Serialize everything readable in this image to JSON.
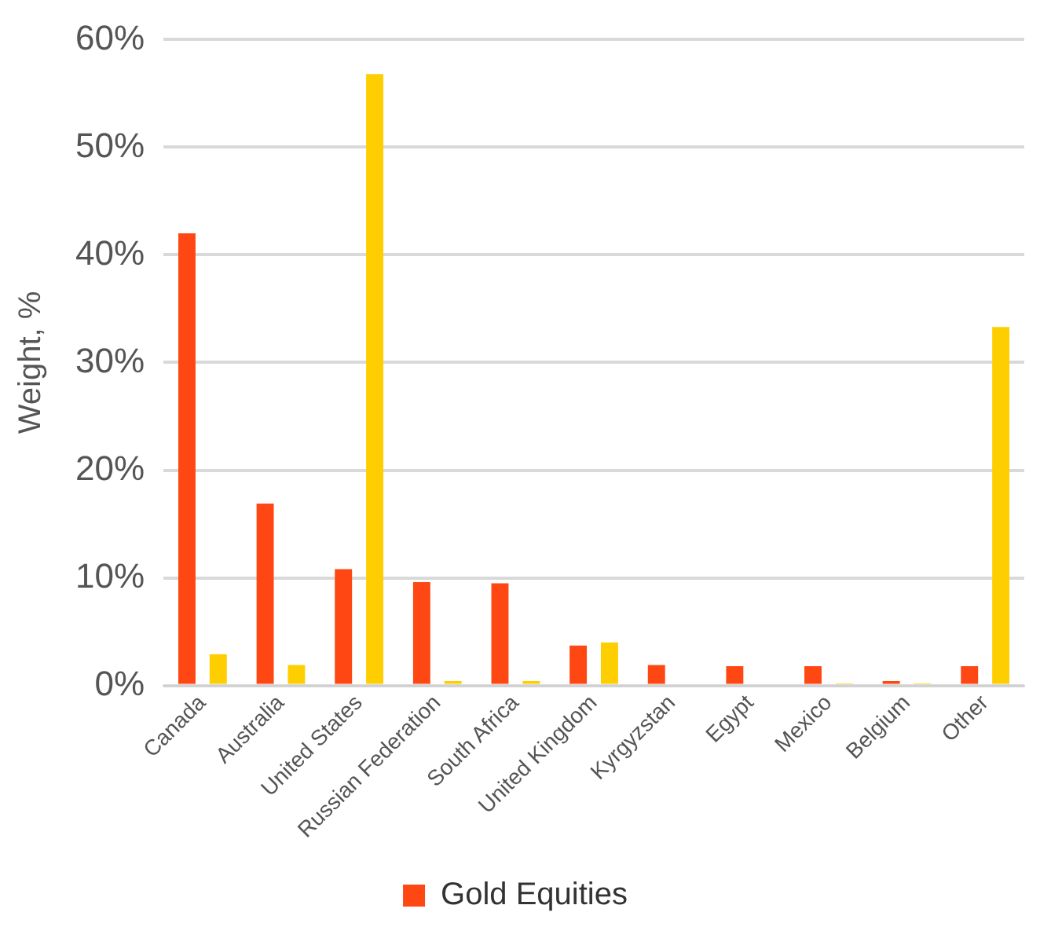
{
  "chart_data": {
    "type": "bar",
    "ylabel": "Weight, %",
    "categories": [
      "Canada",
      "Australia",
      "United States",
      "Russian Federation",
      "South Africa",
      "United Kingdom",
      "Kyrgyzstan",
      "Egypt",
      "Mexico",
      "Belgium",
      "Other"
    ],
    "series": [
      {
        "name": "Gold Equities",
        "color": "#ff4713",
        "values": [
          42.0,
          16.9,
          10.8,
          9.6,
          9.5,
          3.7,
          1.9,
          1.8,
          1.8,
          0.4,
          1.8
        ]
      },
      {
        "color": "#ffce00",
        "values": [
          2.9,
          1.9,
          56.8,
          0.4,
          0.4,
          4.0,
          0,
          0,
          0.2,
          0.2,
          33.3
        ]
      }
    ],
    "ylim": [
      0,
      60
    ],
    "yticks": [
      {
        "value": 0,
        "label": "0%"
      },
      {
        "value": 10,
        "label": "10%"
      },
      {
        "value": 20,
        "label": "20%"
      },
      {
        "value": 30,
        "label": "30%"
      },
      {
        "value": 40,
        "label": "40%"
      },
      {
        "value": 50,
        "label": "50%"
      },
      {
        "value": 60,
        "label": "60%"
      }
    ],
    "grid": "y",
    "legend": "bottom"
  }
}
